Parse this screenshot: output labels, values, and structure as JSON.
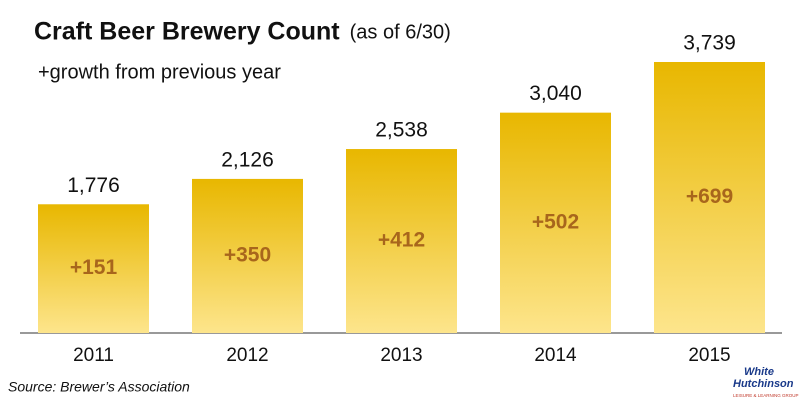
{
  "chart_data": {
    "type": "bar",
    "title": "Craft Beer Brewery Count",
    "title_note": "(as of 6/30)",
    "subtitle": "+growth from previous year",
    "categories": [
      "2011",
      "2012",
      "2013",
      "2014",
      "2015"
    ],
    "values": [
      1776,
      2126,
      2538,
      3040,
      3739
    ],
    "value_labels": [
      "1,776",
      "2,126",
      "2,538",
      "3,040",
      "3,739"
    ],
    "bar_annotations": [
      "+151",
      "+350",
      "+412",
      "+502",
      "+699"
    ],
    "color": "#e9bb0a",
    "source": "Source: Brewer’s Association",
    "logo": {
      "line1": "White",
      "line2": "Hutchinson",
      "tagline": "LEISURE & LEARNING GROUP"
    }
  }
}
